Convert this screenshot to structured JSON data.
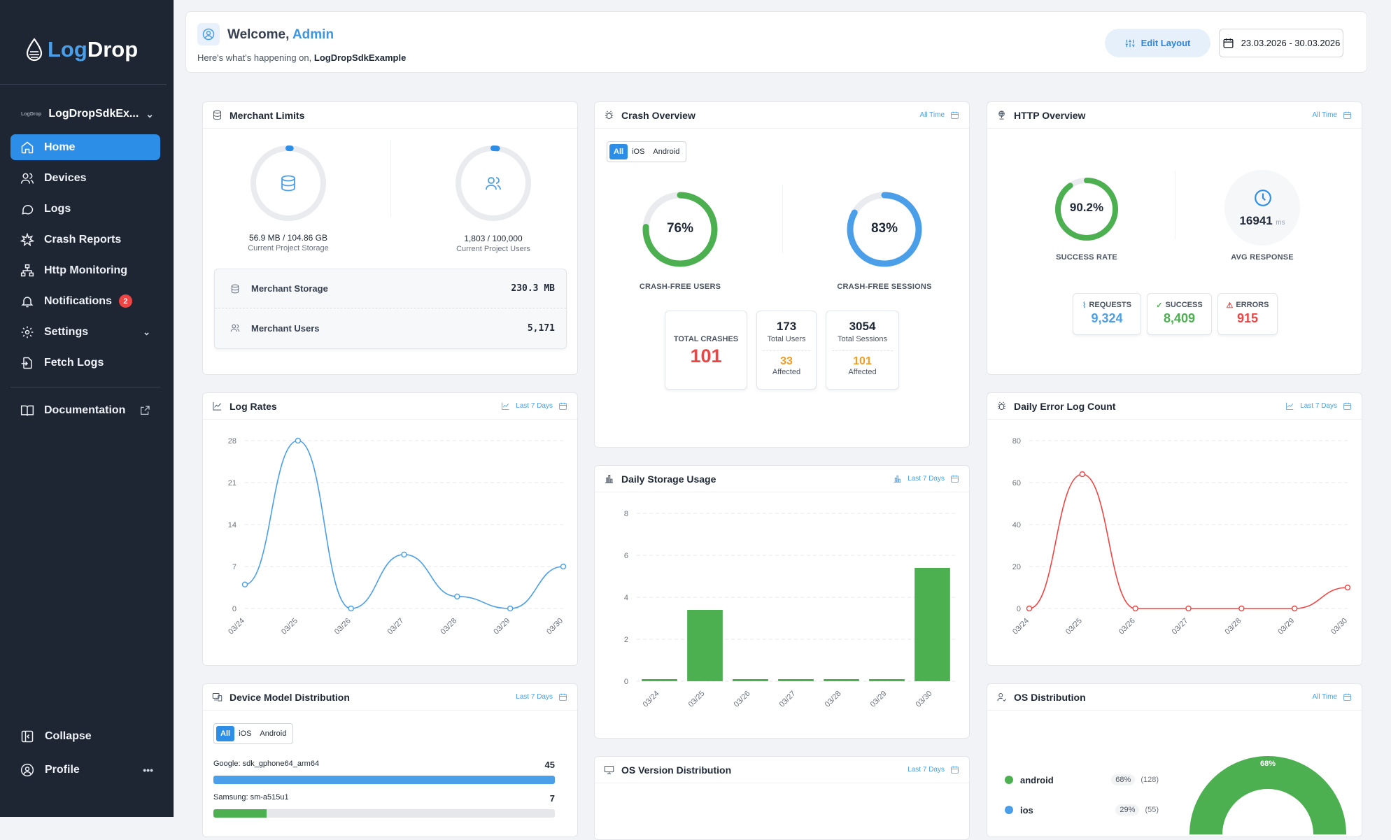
{
  "app": {
    "logo_a": "Log",
    "logo_b": "Drop",
    "project": "LogDropSdkEx...",
    "project_mini": "LogDrop"
  },
  "nav": [
    {
      "label": "Home"
    },
    {
      "label": "Devices"
    },
    {
      "label": "Logs"
    },
    {
      "label": "Crash Reports"
    },
    {
      "label": "Http Monitoring"
    },
    {
      "label": "Notifications",
      "badge": "2"
    },
    {
      "label": "Settings"
    },
    {
      "label": "Fetch Logs"
    },
    {
      "label": "Documentation"
    }
  ],
  "bottom": {
    "collapse": "Collapse",
    "profile": "Profile",
    "more": "•••"
  },
  "header": {
    "welcome": "Welcome,",
    "user": "Admin",
    "sub_prefix": "Here's what's happening on,",
    "sub_project": "LogDropSdkExample",
    "edit_layout": "Edit Layout",
    "date_range": "23.03.2026 - 30.03.2026"
  },
  "merchant": {
    "title": "Merchant Limits",
    "storage_value": "56.9 MB / 104.86 GB",
    "storage_label": "Current Project Storage",
    "users_value": "1,803 / 100,000",
    "users_label": "Current Project Users",
    "storage_fraction": 0.0005,
    "users_fraction": 0.018,
    "m_storage_label": "Merchant Storage",
    "m_storage_value": "230.3 MB",
    "m_users_label": "Merchant Users",
    "m_users_value": "5,171"
  },
  "crash": {
    "title": "Crash Overview",
    "range": "All Time",
    "platforms": [
      "All",
      "iOS",
      "Android"
    ],
    "users_pct": "76%",
    "users_fraction": 0.76,
    "users_label": "CRASH-FREE USERS",
    "sessions_pct": "83%",
    "sessions_fraction": 0.83,
    "sessions_label": "CRASH-FREE SESSIONS",
    "total_crashes_label": "TOTAL CRASHES",
    "total_crashes": "101",
    "total_users": "173",
    "total_users_label": "Total Users",
    "users_affected": "33",
    "affected_label": "Affected",
    "total_sessions": "3054",
    "total_sessions_label": "Total Sessions",
    "sessions_affected": "101"
  },
  "http": {
    "title": "HTTP Overview",
    "range": "All Time",
    "success_rate": "90.2%",
    "success_fraction": 0.902,
    "success_label": "SUCCESS RATE",
    "avg_response": "16941",
    "avg_unit": "ms",
    "avg_label": "AVG RESPONSE",
    "requests_label": "REQUESTS",
    "requests": "9,324",
    "success_count_label": "SUCCESS",
    "success_count": "8,409",
    "errors_label": "ERRORS",
    "errors": "915"
  },
  "log_rates": {
    "title": "Log Rates",
    "range": "Last 7 Days"
  },
  "storage_usage": {
    "title": "Daily Storage Usage",
    "range": "Last 7 Days"
  },
  "error_count": {
    "title": "Daily Error Log Count",
    "range": "Last 7 Days"
  },
  "device_model": {
    "title": "Device Model Distribution",
    "range": "Last 7 Days",
    "platforms": [
      "All",
      "iOS",
      "Android"
    ],
    "rows": [
      {
        "name": "Google: sdk_gphone64_arm64",
        "count": "45",
        "fraction": 1.0,
        "color": "#4a9fe8"
      },
      {
        "name": "Samsung: sm-a515u1",
        "count": "7",
        "fraction": 0.156,
        "color": "#4caf50"
      }
    ]
  },
  "os_version": {
    "title": "OS Version Distribution",
    "range": "Last 7 Days"
  },
  "os_dist": {
    "title": "OS Distribution",
    "range": "All Time",
    "items": [
      {
        "name": "android",
        "pct": "68%",
        "count": "(128)",
        "color": "#4caf50"
      },
      {
        "name": "ios",
        "pct": "29%",
        "count": "(55)",
        "color": "#4a9fe8"
      }
    ],
    "donut_label": "68%"
  },
  "chart_data": [
    {
      "type": "line",
      "title": "Log Rates",
      "x": [
        "03/24",
        "03/25",
        "03/26",
        "03/27",
        "03/28",
        "03/29",
        "03/30"
      ],
      "series": [
        {
          "values": [
            4,
            28,
            0,
            9,
            2,
            0,
            7
          ],
          "color": "#4a9fe8"
        }
      ],
      "yticks": [
        0,
        7,
        14,
        21,
        28
      ],
      "ylim": [
        0,
        28
      ]
    },
    {
      "type": "bar",
      "title": "Daily Storage Usage",
      "categories": [
        "03/24",
        "03/25",
        "03/26",
        "03/27",
        "03/28",
        "03/29",
        "03/30"
      ],
      "values": [
        0.1,
        3.4,
        0.1,
        0.1,
        0.1,
        0.1,
        5.4
      ],
      "color": "#4caf50",
      "yticks": [
        0,
        2,
        4,
        6,
        8
      ],
      "ylim": [
        0,
        8
      ]
    },
    {
      "type": "line",
      "title": "Daily Error Log Count",
      "x": [
        "03/24",
        "03/25",
        "03/26",
        "03/27",
        "03/28",
        "03/29",
        "03/30"
      ],
      "series": [
        {
          "values": [
            0,
            64,
            0,
            0,
            0,
            0,
            10
          ],
          "color": "#ef4444"
        }
      ],
      "yticks": [
        0,
        20,
        40,
        60,
        80
      ],
      "ylim": [
        0,
        80
      ]
    }
  ]
}
